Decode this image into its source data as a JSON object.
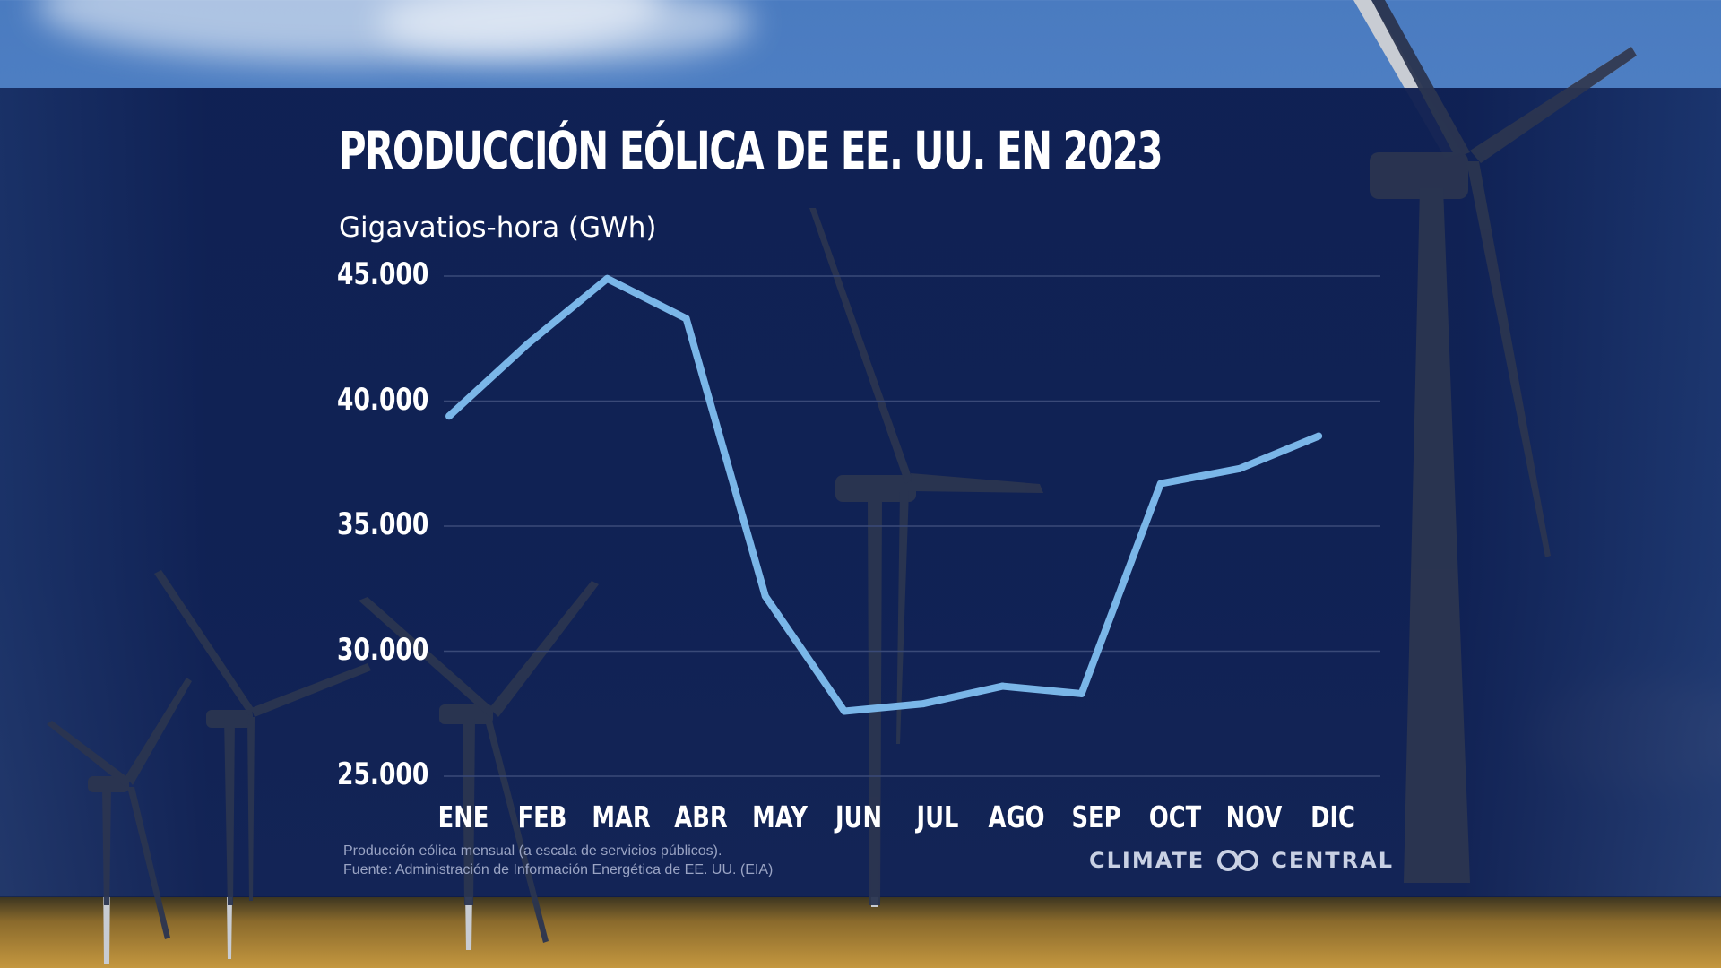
{
  "chart_data": {
    "type": "line",
    "title": "PRODUCCIÓN EÓLICA DE EE. UU. EN 2023",
    "ylabel": "Gigavatios-hora (GWh)",
    "xlabel": "",
    "categories": [
      "ENE",
      "FEB",
      "MAR",
      "ABR",
      "MAY",
      "JUN",
      "JUL",
      "AGO",
      "SEP",
      "OCT",
      "NOV",
      "DIC"
    ],
    "values": [
      39400,
      42300,
      44900,
      43300,
      32200,
      27600,
      27900,
      28600,
      28300,
      36700,
      37300,
      38600
    ],
    "ylim": [
      25000,
      45000
    ],
    "yticks": [
      45000,
      40000,
      35000,
      30000,
      25000
    ],
    "ytick_labels": [
      "45.000",
      "40.000",
      "35.000",
      "30.000",
      "25.000"
    ],
    "grid": true,
    "line_color": "#7ab6e8"
  },
  "notes": {
    "line1": "Producción eólica mensual (a escala de servicios públicos).",
    "line2": "Fuente: Administración de Información Energética de EE. UU. (EIA)"
  },
  "brand": {
    "left": "CLIMATE",
    "right": "CENTRAL",
    "icon": "infinity-rings-icon"
  },
  "colors": {
    "panel": "#0c1c4e",
    "line": "#7ab6e8",
    "grid": "#3a4a78"
  }
}
